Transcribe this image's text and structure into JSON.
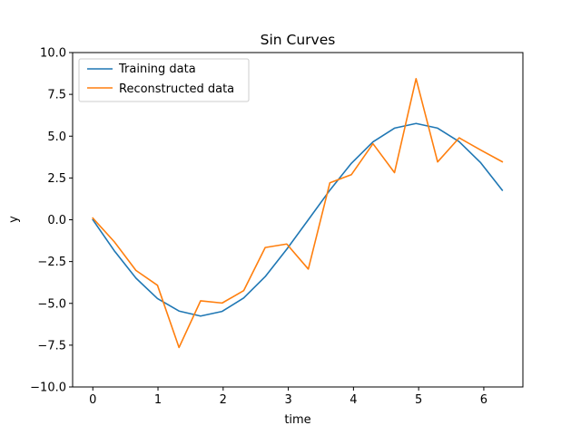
{
  "chart_data": {
    "type": "line",
    "title": "Sin Curves",
    "xlabel": "time",
    "ylabel": "y",
    "xlim": [
      -0.31,
      6.6
    ],
    "ylim": [
      -10.0,
      10.0
    ],
    "xticks": [
      0,
      1,
      2,
      3,
      4,
      5,
      6
    ],
    "xtick_labels": [
      "0",
      "1",
      "2",
      "3",
      "4",
      "5",
      "6"
    ],
    "yticks": [
      -10.0,
      -7.5,
      -5.0,
      -2.5,
      0.0,
      2.5,
      5.0,
      7.5,
      10.0
    ],
    "ytick_labels": [
      "−10.0",
      "−7.5",
      "−5.0",
      "−2.5",
      "0.0",
      "2.5",
      "5.0",
      "7.5",
      "10.0"
    ],
    "grid": false,
    "legend_position": "top-left",
    "x": [
      0.0,
      0.3307,
      0.6614,
      0.9921,
      1.3228,
      1.6535,
      1.9842,
      2.3149,
      2.6456,
      2.9762,
      3.3069,
      3.6376,
      3.9683,
      4.299,
      4.6297,
      4.9604,
      5.2911,
      5.6218,
      5.9525,
      6.2832
    ],
    "series": [
      {
        "name": "Training data",
        "color": "#1f77b4",
        "values": [
          0.0,
          -1.86,
          -3.49,
          -4.71,
          -5.46,
          -5.76,
          -5.48,
          -4.68,
          -3.4,
          -1.76,
          0.0,
          1.77,
          3.38,
          4.66,
          5.48,
          5.76,
          5.48,
          4.67,
          3.41,
          1.77
        ]
      },
      {
        "name": "Reconstructed data",
        "color": "#ff7f0e",
        "values": [
          0.1,
          -1.32,
          -3.03,
          -3.92,
          -7.64,
          -4.85,
          -4.98,
          -4.24,
          -1.66,
          -1.45,
          -2.95,
          2.21,
          2.7,
          4.55,
          2.82,
          8.44,
          3.46,
          4.9,
          4.17,
          3.47
        ]
      }
    ]
  }
}
